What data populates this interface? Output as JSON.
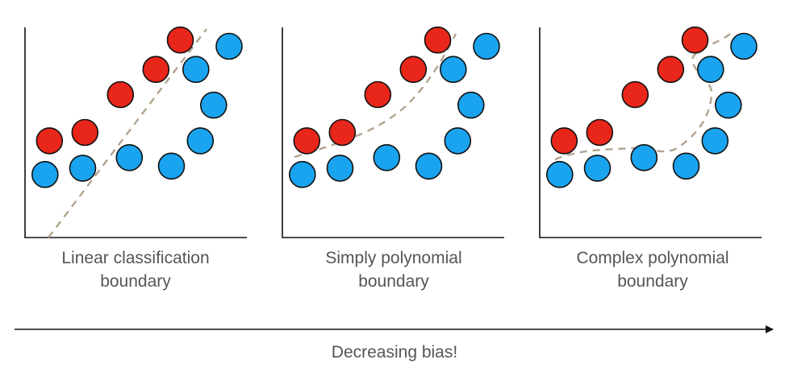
{
  "colors": {
    "class_a": "#e8261a",
    "class_b": "#1aa3ef",
    "boundary": "#b2a38f",
    "axis": "#111111",
    "caption": "#555555"
  },
  "panels": [
    {
      "caption_line1": "Linear classification",
      "caption_line2": "boundary",
      "boundary_style": "dashed-straight-line",
      "points": [
        {
          "x": 0.11,
          "y": 0.46,
          "class": "a"
        },
        {
          "x": 0.27,
          "y": 0.5,
          "class": "a"
        },
        {
          "x": 0.43,
          "y": 0.68,
          "class": "a"
        },
        {
          "x": 0.59,
          "y": 0.8,
          "class": "a"
        },
        {
          "x": 0.7,
          "y": 0.94,
          "class": "a"
        },
        {
          "x": 0.09,
          "y": 0.3,
          "class": "b"
        },
        {
          "x": 0.26,
          "y": 0.33,
          "class": "b"
        },
        {
          "x": 0.47,
          "y": 0.38,
          "class": "b"
        },
        {
          "x": 0.66,
          "y": 0.34,
          "class": "b"
        },
        {
          "x": 0.79,
          "y": 0.46,
          "class": "b"
        },
        {
          "x": 0.85,
          "y": 0.63,
          "class": "b"
        },
        {
          "x": 0.77,
          "y": 0.8,
          "class": "b"
        },
        {
          "x": 0.92,
          "y": 0.91,
          "class": "b"
        }
      ]
    },
    {
      "caption_line1": "Simply polynomial",
      "caption_line2": "boundary",
      "boundary_style": "dashed-gentle-curve",
      "points": [
        {
          "x": 0.11,
          "y": 0.46,
          "class": "a"
        },
        {
          "x": 0.27,
          "y": 0.5,
          "class": "a"
        },
        {
          "x": 0.43,
          "y": 0.68,
          "class": "a"
        },
        {
          "x": 0.59,
          "y": 0.8,
          "class": "a"
        },
        {
          "x": 0.7,
          "y": 0.94,
          "class": "a"
        },
        {
          "x": 0.09,
          "y": 0.3,
          "class": "b"
        },
        {
          "x": 0.26,
          "y": 0.33,
          "class": "b"
        },
        {
          "x": 0.47,
          "y": 0.38,
          "class": "b"
        },
        {
          "x": 0.66,
          "y": 0.34,
          "class": "b"
        },
        {
          "x": 0.79,
          "y": 0.46,
          "class": "b"
        },
        {
          "x": 0.85,
          "y": 0.63,
          "class": "b"
        },
        {
          "x": 0.77,
          "y": 0.8,
          "class": "b"
        },
        {
          "x": 0.92,
          "y": 0.91,
          "class": "b"
        }
      ]
    },
    {
      "caption_line1": "Complex polynomial",
      "caption_line2": "boundary",
      "boundary_style": "dashed-wiggly-curve",
      "points": [
        {
          "x": 0.11,
          "y": 0.46,
          "class": "a"
        },
        {
          "x": 0.27,
          "y": 0.5,
          "class": "a"
        },
        {
          "x": 0.43,
          "y": 0.68,
          "class": "a"
        },
        {
          "x": 0.59,
          "y": 0.8,
          "class": "a"
        },
        {
          "x": 0.7,
          "y": 0.94,
          "class": "a"
        },
        {
          "x": 0.09,
          "y": 0.3,
          "class": "b"
        },
        {
          "x": 0.26,
          "y": 0.33,
          "class": "b"
        },
        {
          "x": 0.47,
          "y": 0.38,
          "class": "b"
        },
        {
          "x": 0.66,
          "y": 0.34,
          "class": "b"
        },
        {
          "x": 0.79,
          "y": 0.46,
          "class": "b"
        },
        {
          "x": 0.85,
          "y": 0.63,
          "class": "b"
        },
        {
          "x": 0.77,
          "y": 0.8,
          "class": "b"
        },
        {
          "x": 0.92,
          "y": 0.91,
          "class": "b"
        }
      ]
    }
  ],
  "arrow": {
    "label": "Decreasing bias!",
    "direction": "right"
  }
}
